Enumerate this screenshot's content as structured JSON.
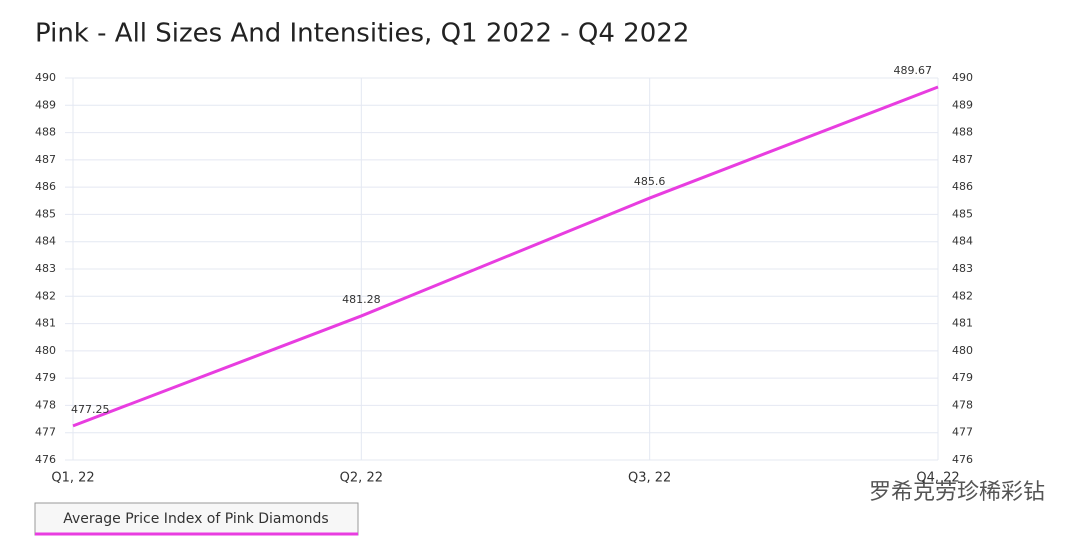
{
  "chart_data": {
    "type": "line",
    "title": "Pink - All Sizes And Intensities, Q1 2022 - Q4 2022",
    "categories": [
      "Q1, 22",
      "Q2, 22",
      "Q3, 22",
      "Q4, 22"
    ],
    "series": [
      {
        "name": "Average Price Index of Pink Diamonds",
        "color": "#e83de0",
        "values": [
          477.25,
          481.28,
          485.6,
          489.67
        ]
      }
    ],
    "ylim": [
      476,
      490
    ],
    "yticks": [
      476,
      477,
      478,
      479,
      480,
      481,
      482,
      483,
      484,
      485,
      486,
      487,
      488,
      489,
      490
    ],
    "y2lim": [
      476,
      490
    ],
    "y2ticks": [
      476,
      477,
      478,
      479,
      480,
      481,
      482,
      483,
      484,
      485,
      486,
      487,
      488,
      489,
      490
    ],
    "grid": true,
    "watermark": "罗希克劳珍稀彩钻"
  }
}
